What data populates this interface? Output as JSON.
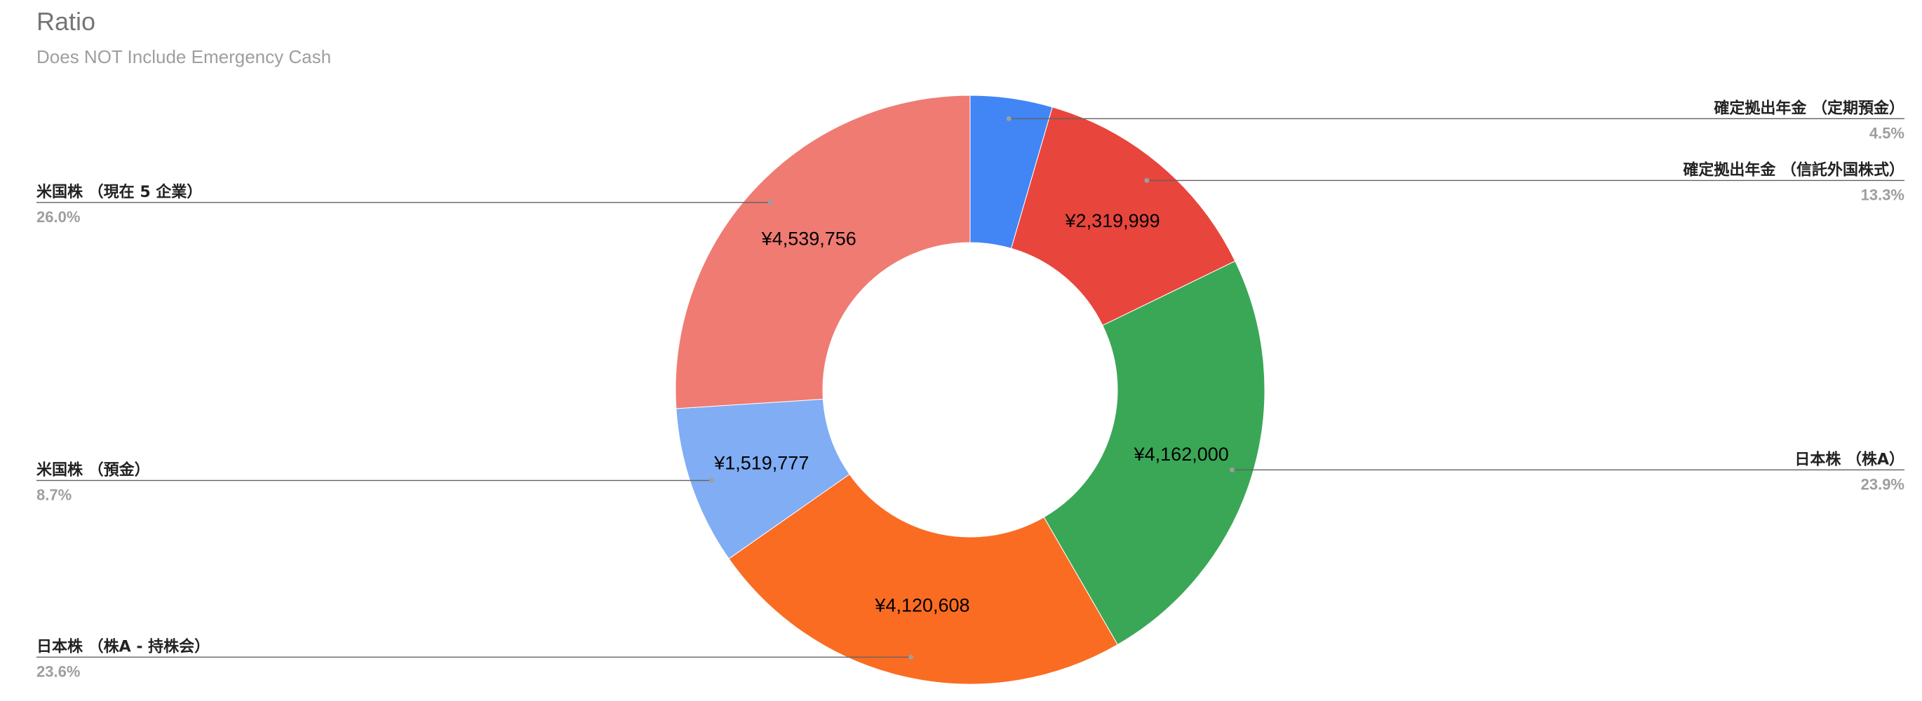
{
  "chart_data": {
    "type": "pie",
    "donut": true,
    "title": "Ratio",
    "subtitle": "Does NOT Include Emergency Cash",
    "currency_prefix": "¥",
    "slices": [
      {
        "name": "確定拠出年金 （定期預金）",
        "value": 786000,
        "value_label": "",
        "percent_label": "4.5%",
        "color": "#4285f4",
        "legend_side": "right"
      },
      {
        "name": "確定拠出年金 （信託外国株式）",
        "value": 2319999,
        "value_label": "¥2,319,999",
        "percent_label": "13.3%",
        "color": "#e8453c",
        "legend_side": "right"
      },
      {
        "name": "日本株 （株A）",
        "value": 4162000,
        "value_label": "¥4,162,000",
        "percent_label": "23.9%",
        "color": "#3aa757",
        "legend_side": "right"
      },
      {
        "name": "日本株 （株A - 持株会）",
        "value": 4120608,
        "value_label": "¥4,120,608",
        "percent_label": "23.6%",
        "color": "#fa6c22",
        "legend_side": "left"
      },
      {
        "name": "米国株 （預金）",
        "value": 1519777,
        "value_label": "¥1,519,777",
        "percent_label": "8.7%",
        "color": "#80adf4",
        "legend_side": "left"
      },
      {
        "name": "米国株 （現在 5 企業）",
        "value": 4539756,
        "value_label": "¥4,539,756",
        "percent_label": "26.0%",
        "color": "#ef7b73",
        "legend_side": "left"
      }
    ]
  }
}
